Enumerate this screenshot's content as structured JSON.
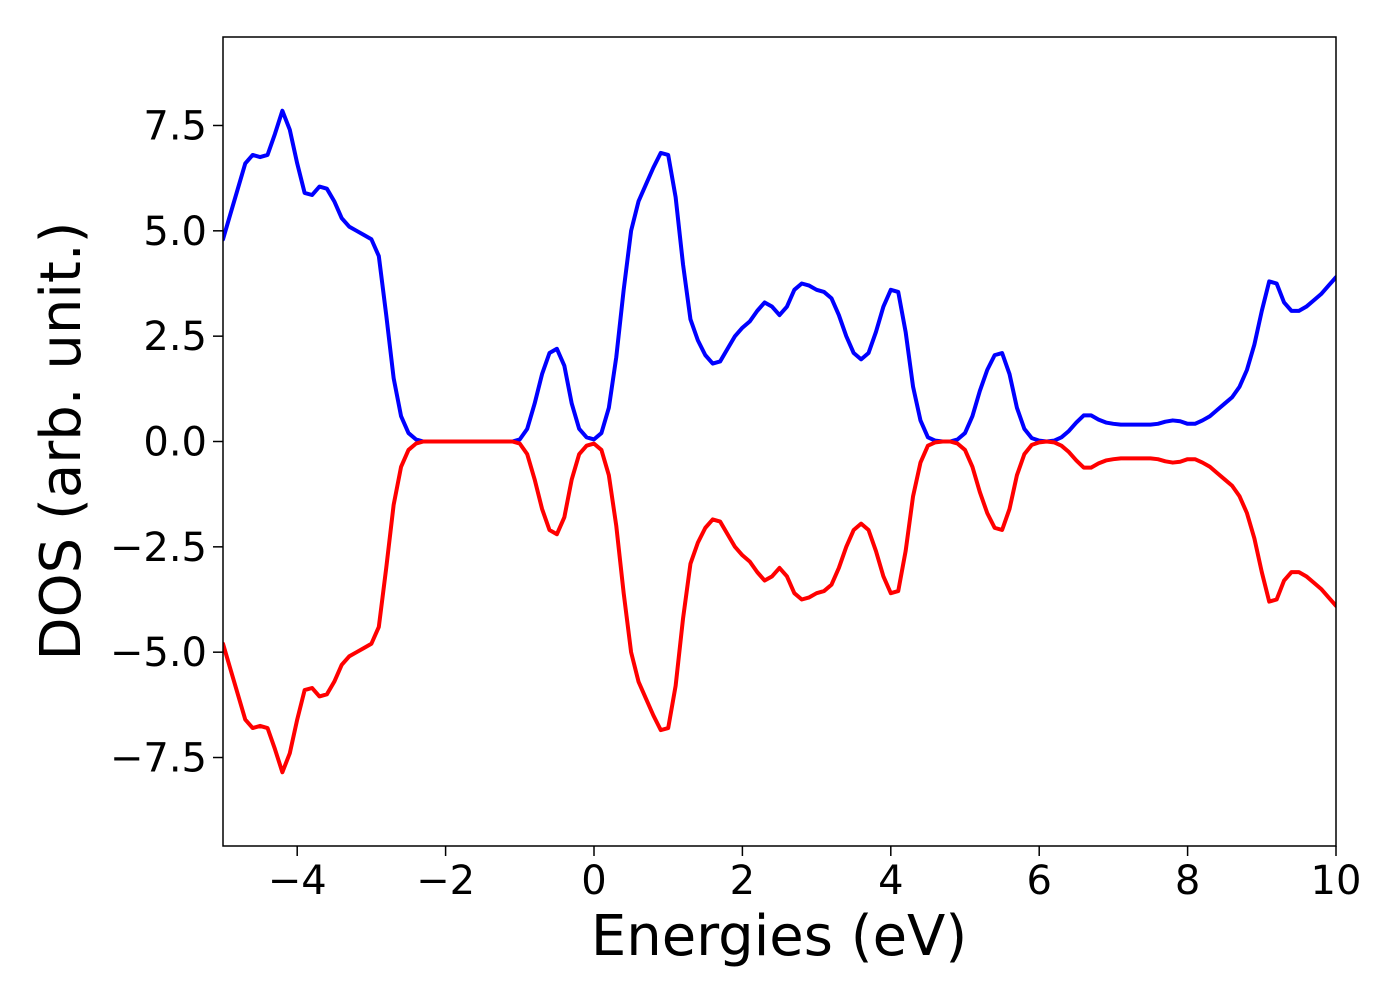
{
  "chart_data": {
    "type": "line",
    "xlabel": "Energies (eV)",
    "ylabel": "DOS (arb. unit.)",
    "xlim": [
      -5,
      10
    ],
    "ylim": [
      -9.6,
      9.6
    ],
    "xticks": [
      {
        "value": -4,
        "label": "−4"
      },
      {
        "value": -2,
        "label": "−2"
      },
      0,
      2,
      4,
      6,
      8,
      10
    ],
    "yticks": [
      {
        "value": -7.5,
        "label": "−7.5"
      },
      {
        "value": -5,
        "label": "−5.0"
      },
      {
        "value": -2.5,
        "label": "−2.5"
      },
      {
        "value": 0,
        "label": "0.0"
      },
      2.5,
      {
        "value": 5,
        "label": "5.0"
      },
      7.5
    ],
    "grid": false,
    "x": [
      -5.0,
      -4.9,
      -4.8,
      -4.7,
      -4.6,
      -4.5,
      -4.4,
      -4.3,
      -4.2,
      -4.1,
      -4.0,
      -3.9,
      -3.8,
      -3.7,
      -3.6,
      -3.5,
      -3.4,
      -3.3,
      -3.2,
      -3.1,
      -3.0,
      -2.9,
      -2.8,
      -2.7,
      -2.6,
      -2.5,
      -2.4,
      -2.3,
      -2.2,
      -2.1,
      -2.0,
      -1.9,
      -1.8,
      -1.7,
      -1.6,
      -1.5,
      -1.4,
      -1.3,
      -1.2,
      -1.1,
      -1.0,
      -0.9,
      -0.8,
      -0.7,
      -0.6,
      -0.5,
      -0.4,
      -0.3,
      -0.2,
      -0.1,
      0.0,
      0.1,
      0.2,
      0.3,
      0.4,
      0.5,
      0.6,
      0.7,
      0.8,
      0.9,
      1.0,
      1.1,
      1.2,
      1.3,
      1.4,
      1.5,
      1.6,
      1.7,
      1.8,
      1.9,
      2.0,
      2.1,
      2.2,
      2.3,
      2.4,
      2.5,
      2.6,
      2.7,
      2.8,
      2.9,
      3.0,
      3.1,
      3.2,
      3.3,
      3.4,
      3.5,
      3.6,
      3.7,
      3.8,
      3.9,
      4.0,
      4.1,
      4.2,
      4.3,
      4.4,
      4.5,
      4.6,
      4.7,
      4.8,
      4.9,
      5.0,
      5.1,
      5.2,
      5.3,
      5.4,
      5.5,
      5.6,
      5.7,
      5.8,
      5.9,
      6.0,
      6.1,
      6.2,
      6.3,
      6.4,
      6.5,
      6.6,
      6.7,
      6.8,
      6.9,
      7.0,
      7.1,
      7.2,
      7.3,
      7.4,
      7.5,
      7.6,
      7.7,
      7.8,
      7.9,
      8.0,
      8.1,
      8.2,
      8.3,
      8.4,
      8.5,
      8.6,
      8.7,
      8.8,
      8.9,
      9.0,
      9.1,
      9.2,
      9.3,
      9.4,
      9.5,
      9.6,
      9.7,
      9.8,
      9.9,
      10.0
    ],
    "series": [
      {
        "color": "#0000ff",
        "values": [
          4.8,
          5.4,
          6.0,
          6.6,
          6.8,
          6.75,
          6.8,
          7.3,
          7.85,
          7.4,
          6.6,
          5.9,
          5.85,
          6.05,
          6.0,
          5.7,
          5.3,
          5.1,
          5.0,
          4.9,
          4.8,
          4.4,
          3.0,
          1.5,
          0.6,
          0.2,
          0.05,
          0,
          0,
          0,
          0,
          0,
          0,
          0,
          0,
          0,
          0,
          0,
          0,
          0,
          0.05,
          0.3,
          0.9,
          1.6,
          2.1,
          2.2,
          1.8,
          0.9,
          0.3,
          0.1,
          0.05,
          0.2,
          0.8,
          2.0,
          3.6,
          5.0,
          5.7,
          6.1,
          6.5,
          6.85,
          6.8,
          5.8,
          4.2,
          2.9,
          2.4,
          2.05,
          1.85,
          1.9,
          2.2,
          2.5,
          2.7,
          2.85,
          3.1,
          3.3,
          3.2,
          3.0,
          3.2,
          3.6,
          3.75,
          3.7,
          3.6,
          3.55,
          3.4,
          3.0,
          2.5,
          2.1,
          1.95,
          2.1,
          2.6,
          3.2,
          3.6,
          3.55,
          2.6,
          1.3,
          0.5,
          0.1,
          0.02,
          0,
          0,
          0.05,
          0.2,
          0.6,
          1.2,
          1.7,
          2.05,
          2.1,
          1.6,
          0.8,
          0.3,
          0.08,
          0.02,
          0,
          0.02,
          0.1,
          0.25,
          0.45,
          0.62,
          0.62,
          0.52,
          0.45,
          0.42,
          0.4,
          0.4,
          0.4,
          0.4,
          0.4,
          0.42,
          0.47,
          0.5,
          0.48,
          0.42,
          0.42,
          0.5,
          0.6,
          0.75,
          0.9,
          1.05,
          1.3,
          1.7,
          2.3,
          3.1,
          3.8,
          3.75,
          3.3,
          3.1,
          3.1,
          3.2,
          3.35,
          3.5,
          3.7,
          3.9
        ]
      },
      {
        "color": "#ff0000",
        "values": [
          -4.8,
          -5.4,
          -6.0,
          -6.6,
          -6.8,
          -6.75,
          -6.8,
          -7.3,
          -7.85,
          -7.4,
          -6.6,
          -5.9,
          -5.85,
          -6.05,
          -6.0,
          -5.7,
          -5.3,
          -5.1,
          -5.0,
          -4.9,
          -4.8,
          -4.4,
          -3.0,
          -1.5,
          -0.6,
          -0.2,
          -0.05,
          0,
          0,
          0,
          0,
          0,
          0,
          0,
          0,
          0,
          0,
          0,
          0,
          0,
          -0.05,
          -0.3,
          -0.9,
          -1.6,
          -2.1,
          -2.2,
          -1.8,
          -0.9,
          -0.3,
          -0.1,
          -0.05,
          -0.2,
          -0.8,
          -2.0,
          -3.6,
          -5.0,
          -5.7,
          -6.1,
          -6.5,
          -6.85,
          -6.8,
          -5.8,
          -4.2,
          -2.9,
          -2.4,
          -2.05,
          -1.85,
          -1.9,
          -2.2,
          -2.5,
          -2.7,
          -2.85,
          -3.1,
          -3.3,
          -3.2,
          -3.0,
          -3.2,
          -3.6,
          -3.75,
          -3.7,
          -3.6,
          -3.55,
          -3.4,
          -3.0,
          -2.5,
          -2.1,
          -1.95,
          -2.1,
          -2.6,
          -3.2,
          -3.6,
          -3.55,
          -2.6,
          -1.3,
          -0.5,
          -0.1,
          -0.02,
          0,
          0,
          -0.05,
          -0.2,
          -0.6,
          -1.2,
          -1.7,
          -2.05,
          -2.1,
          -1.6,
          -0.8,
          -0.3,
          -0.08,
          -0.02,
          0,
          -0.02,
          -0.1,
          -0.25,
          -0.45,
          -0.62,
          -0.62,
          -0.52,
          -0.45,
          -0.42,
          -0.4,
          -0.4,
          -0.4,
          -0.4,
          -0.4,
          -0.42,
          -0.47,
          -0.5,
          -0.48,
          -0.42,
          -0.42,
          -0.5,
          -0.6,
          -0.75,
          -0.9,
          -1.05,
          -1.3,
          -1.7,
          -2.3,
          -3.1,
          -3.8,
          -3.75,
          -3.3,
          -3.1,
          -3.1,
          -3.2,
          -3.35,
          -3.5,
          -3.7,
          -3.9
        ]
      }
    ]
  }
}
